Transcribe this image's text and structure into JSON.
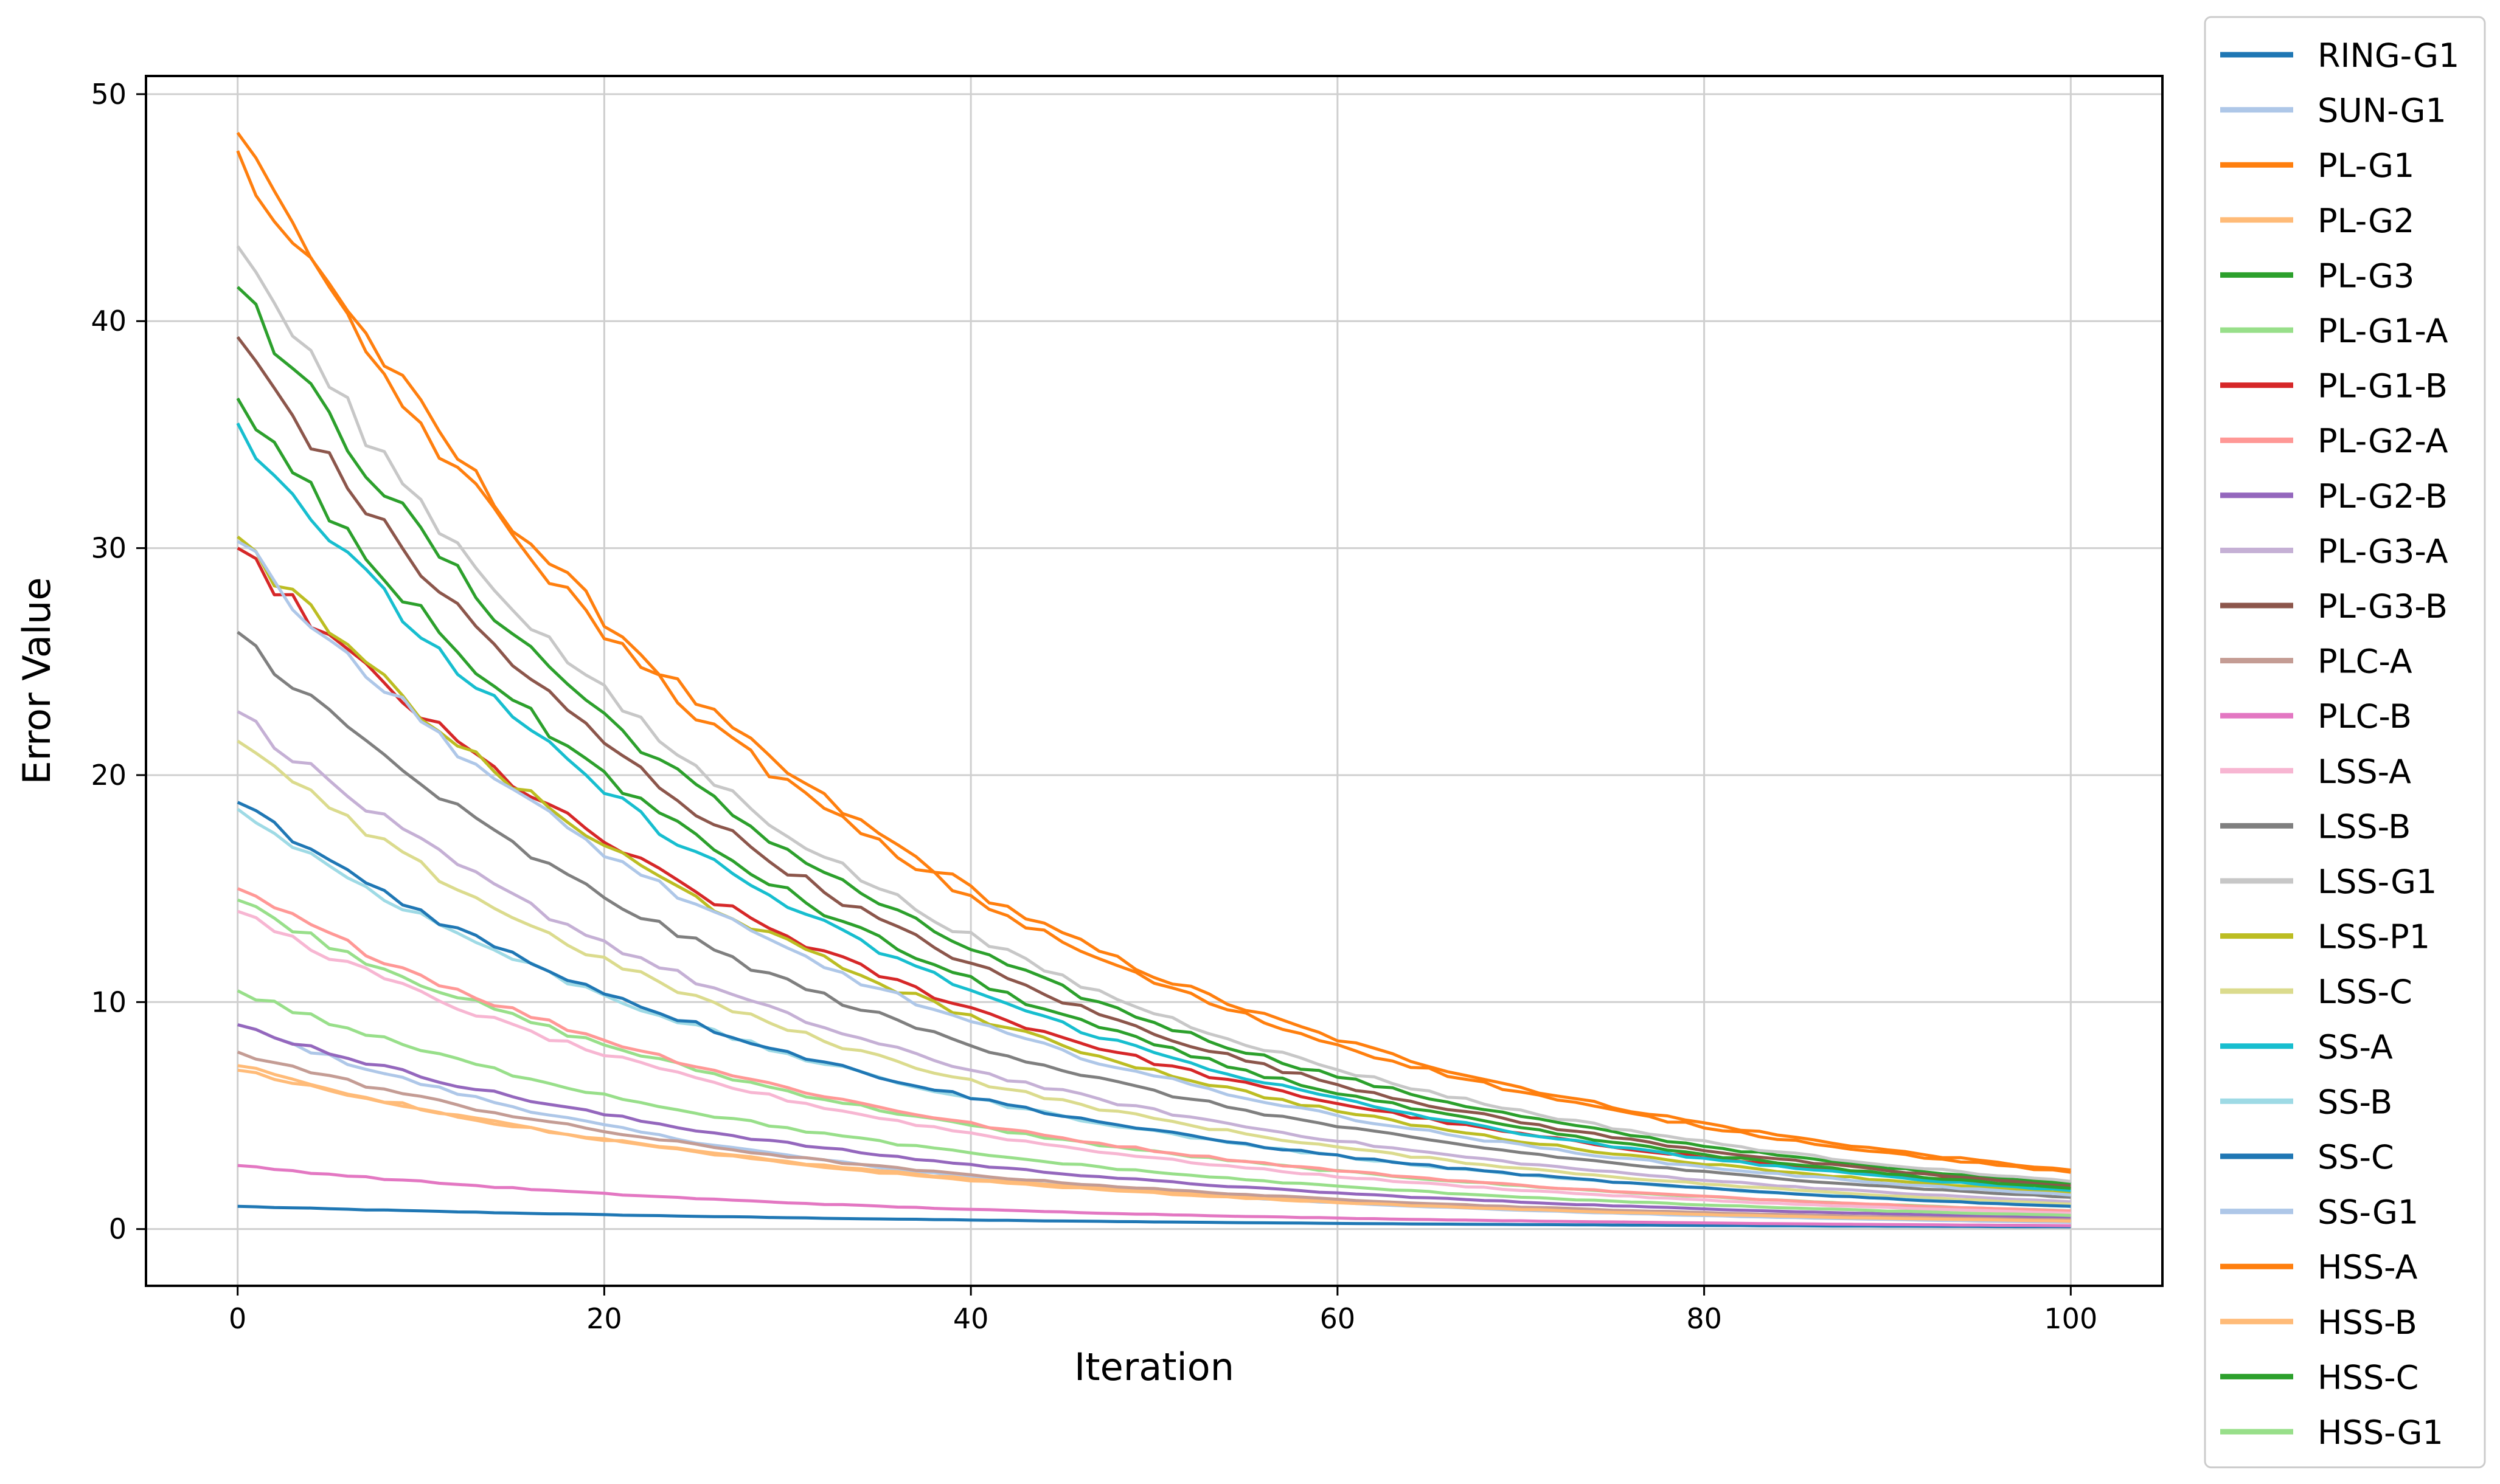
{
  "chart_data": {
    "type": "line",
    "title": "",
    "xlabel": "Iteration",
    "ylabel": "Error Value",
    "xlim": [
      -5,
      105
    ],
    "ylim": [
      -2.5,
      50.8
    ],
    "x_ticks": [
      0,
      20,
      40,
      60,
      80,
      100
    ],
    "y_ticks": [
      0,
      10,
      20,
      30,
      40,
      50
    ],
    "x_tick_labels": [
      "0",
      "20",
      "40",
      "60",
      "80",
      "100"
    ],
    "y_tick_labels": [
      "0",
      "10",
      "20",
      "30",
      "40",
      "50"
    ],
    "grid": true,
    "legend_position": "outside-right",
    "x_start": 0,
    "x_end": 100,
    "series": [
      {
        "name": "RING-G1",
        "color": "#1f77b4",
        "start": 1.0,
        "end": 0.1
      },
      {
        "name": "SUN-G1",
        "color": "#aec7e8",
        "start": 9.0,
        "end": 0.3
      },
      {
        "name": "PL-G1",
        "color": "#ff7f0e",
        "start": 48.3,
        "end": 2.6
      },
      {
        "name": "PL-G2",
        "color": "#ffbb78",
        "start": 7.0,
        "end": 0.4
      },
      {
        "name": "PL-G3",
        "color": "#2ca02c",
        "start": 41.5,
        "end": 2.0
      },
      {
        "name": "PL-G1-A",
        "color": "#98df8a",
        "start": 14.5,
        "end": 0.8
      },
      {
        "name": "PL-G1-B",
        "color": "#d62728",
        "start": 30.0,
        "end": 1.8
      },
      {
        "name": "PL-G2-A",
        "color": "#ff9896",
        "start": 15.0,
        "end": 0.8
      },
      {
        "name": "PL-G2-B",
        "color": "#9467bd",
        "start": 9.0,
        "end": 0.5
      },
      {
        "name": "PL-G3-A",
        "color": "#c5b0d5",
        "start": 22.8,
        "end": 1.2
      },
      {
        "name": "PL-G3-B",
        "color": "#8c564b",
        "start": 39.3,
        "end": 1.9
      },
      {
        "name": "PLC-A",
        "color": "#c49c94",
        "start": 7.8,
        "end": 0.4
      },
      {
        "name": "PLC-B",
        "color": "#e377c2",
        "start": 2.8,
        "end": 0.15
      },
      {
        "name": "LSS-A",
        "color": "#f7b6d2",
        "start": 14.0,
        "end": 0.7
      },
      {
        "name": "LSS-B",
        "color": "#7f7f7f",
        "start": 26.3,
        "end": 1.4
      },
      {
        "name": "LSS-G1",
        "color": "#c7c7c7",
        "start": 43.3,
        "end": 2.1
      },
      {
        "name": "LSS-P1",
        "color": "#bcbd22",
        "start": 30.5,
        "end": 1.6
      },
      {
        "name": "LSS-C",
        "color": "#dbdb8d",
        "start": 21.5,
        "end": 1.1
      },
      {
        "name": "SS-A",
        "color": "#17becf",
        "start": 35.5,
        "end": 1.7
      },
      {
        "name": "SS-B",
        "color": "#9edae5",
        "start": 18.5,
        "end": 1.0
      },
      {
        "name": "SS-C",
        "color": "#1f77b4",
        "start": 18.8,
        "end": 1.0
      },
      {
        "name": "SS-G1",
        "color": "#aec7e8",
        "start": 30.3,
        "end": 1.5
      },
      {
        "name": "HSS-A",
        "color": "#ff7f0e",
        "start": 47.5,
        "end": 2.5
      },
      {
        "name": "HSS-B",
        "color": "#ffbb78",
        "start": 7.2,
        "end": 0.35
      },
      {
        "name": "HSS-C",
        "color": "#2ca02c",
        "start": 36.6,
        "end": 1.8
      },
      {
        "name": "HSS-G1",
        "color": "#98df8a",
        "start": 10.5,
        "end": 0.6
      }
    ]
  }
}
